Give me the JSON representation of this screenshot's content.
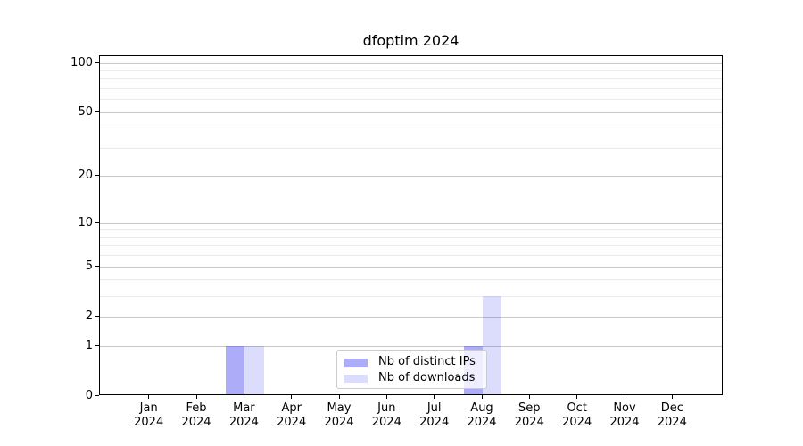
{
  "chart_data": {
    "type": "bar",
    "title": "dfoptim 2024",
    "x": {
      "categories": [
        "Jan",
        "Feb",
        "Mar",
        "Apr",
        "May",
        "Jun",
        "Jul",
        "Aug",
        "Sep",
        "Oct",
        "Nov",
        "Dec"
      ],
      "year_label": "2024"
    },
    "y": {
      "scale": "log1p",
      "ylim": [
        0,
        110
      ],
      "ticks": [
        0,
        1,
        2,
        5,
        10,
        20,
        50,
        100
      ],
      "tick_labels": [
        "0",
        "1",
        "2",
        "5",
        "10",
        "20",
        "50",
        "100"
      ],
      "minor_gridlines": [
        3,
        4,
        6,
        7,
        8,
        9,
        30,
        40,
        60,
        70,
        80,
        90
      ],
      "grid": "on"
    },
    "series": [
      {
        "name": "Nb of distinct IPs",
        "color_hex": "#aaaaf6",
        "color_rgba": "rgba(70,70,240,0.45)",
        "values": [
          0,
          0,
          1,
          0,
          0,
          0,
          0,
          1,
          0,
          0,
          0,
          0
        ]
      },
      {
        "name": "Nb of downloads",
        "color_hex": "#dcdcf8",
        "color_rgba": "rgba(70,70,240,0.19)",
        "values": [
          0,
          0,
          1,
          0,
          0,
          0,
          0,
          3,
          0,
          0,
          0,
          0
        ]
      }
    ],
    "legend": {
      "position": "lower center",
      "frame_alpha": 0.8
    }
  },
  "colors": {
    "background": "#ffffff",
    "spine": "#000000",
    "grid_major": "#c8c8c8",
    "grid_minor": "#ebebeb",
    "legend_border": "#cccccc"
  }
}
